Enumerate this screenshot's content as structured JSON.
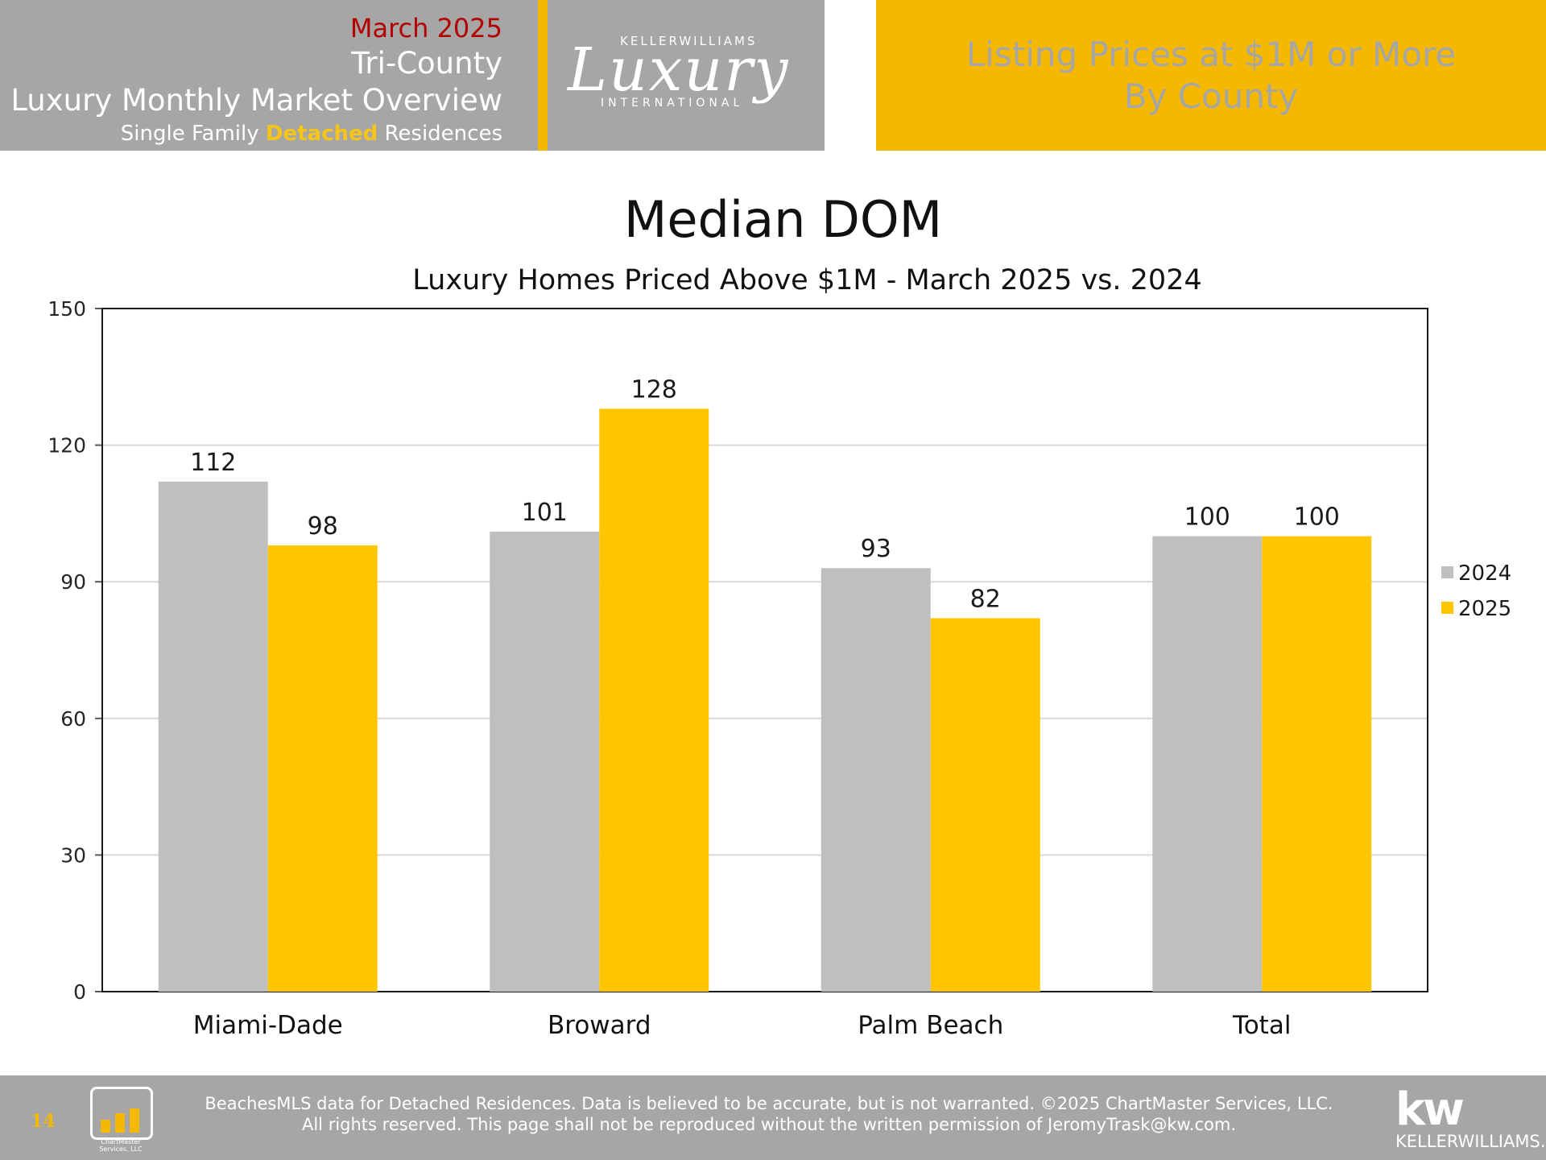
{
  "header": {
    "month": "March 2025",
    "line1": "Tri-County",
    "line2": "Luxury Monthly Market Overview",
    "sub_pre": "Single Family ",
    "sub_highlight": "Detached",
    "sub_post": " Residences",
    "logo_top": "KELLERWILLIAMS",
    "logo_main": "Luxury",
    "logo_bottom": "INTERNATIONAL",
    "right_line1": "Listing Prices at $1M or More",
    "right_line2": "By County"
  },
  "chart_data": {
    "type": "bar",
    "title": "Median DOM",
    "subtitle": "Luxury Homes Priced Above $1M - March 2025 vs. 2024",
    "categories": [
      "Miami-Dade",
      "Broward",
      "Palm Beach",
      "Total"
    ],
    "series": [
      {
        "name": "2024",
        "values": [
          112,
          101,
          93,
          100
        ],
        "color": "#bfbfbf"
      },
      {
        "name": "2025",
        "values": [
          98,
          128,
          82,
          100
        ],
        "color": "#ffc600"
      }
    ],
    "ylim": [
      0,
      150
    ],
    "yticks": [
      0,
      30,
      60,
      90,
      120,
      150
    ],
    "grid": true,
    "legend": "right"
  },
  "footer": {
    "page_number": "14",
    "logo_text": "ChartMaster Services, LLC",
    "line1": "BeachesMLS data for Detached Residences.  Data is believed to be accurate, but is not warranted.   ©2025  ChartMaster Services, LLC.",
    "line2": "All rights reserved. This page shall not be reproduced without the written permission of JeromyTrask@kw.com.",
    "kw_logo": "kw",
    "kw_text": "KELLERWILLIAMS."
  }
}
